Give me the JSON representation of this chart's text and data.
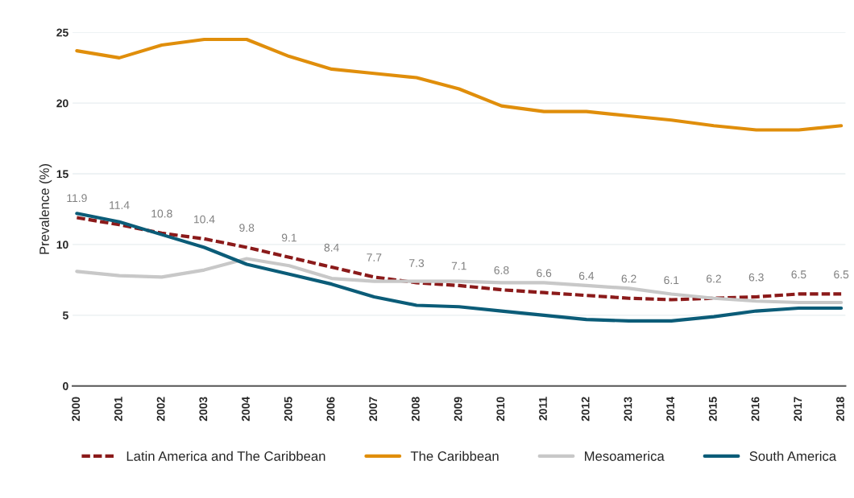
{
  "chart_data": {
    "type": "line",
    "ylabel": "Prevalence (%)",
    "categories": [
      "2000",
      "2001",
      "2002",
      "2003",
      "2004",
      "2005",
      "2006",
      "2007",
      "2008",
      "2009",
      "2010",
      "2011",
      "2012",
      "2013",
      "2014",
      "2015",
      "2016",
      "2017",
      "2018"
    ],
    "ylim": [
      0,
      25
    ],
    "yticks": [
      0,
      5,
      10,
      15,
      20,
      25
    ],
    "grid": "y",
    "legend": "bottom",
    "series": [
      {
        "name": "Latin America and The Caribbean",
        "color": "#8b1a1a",
        "line_style": "dashed",
        "data_labels": true,
        "values": [
          11.9,
          11.4,
          10.8,
          10.4,
          9.8,
          9.1,
          8.4,
          7.7,
          7.3,
          7.1,
          6.8,
          6.6,
          6.4,
          6.2,
          6.1,
          6.2,
          6.3,
          6.5,
          6.5
        ]
      },
      {
        "name": "The Caribbean",
        "color": "#e08e0b",
        "line_style": "solid",
        "values": [
          23.7,
          23.2,
          24.1,
          24.5,
          24.5,
          23.3,
          22.4,
          22.1,
          21.8,
          21.0,
          19.8,
          19.4,
          19.4,
          19.1,
          18.8,
          18.4,
          18.1,
          18.1,
          18.4
        ]
      },
      {
        "name": "Mesoamerica",
        "color": "#c8c8c8",
        "line_style": "solid",
        "values": [
          8.1,
          7.8,
          7.7,
          8.2,
          9.0,
          8.5,
          7.6,
          7.4,
          7.4,
          7.4,
          7.3,
          7.3,
          7.1,
          6.9,
          6.5,
          6.2,
          6.0,
          5.9,
          5.9
        ]
      },
      {
        "name": "South America",
        "color": "#0b5c78",
        "line_style": "solid",
        "values": [
          12.2,
          11.6,
          10.7,
          9.8,
          8.6,
          7.9,
          7.2,
          6.3,
          5.7,
          5.6,
          5.3,
          5.0,
          4.7,
          4.6,
          4.6,
          4.9,
          5.3,
          5.5,
          5.5
        ]
      }
    ]
  }
}
